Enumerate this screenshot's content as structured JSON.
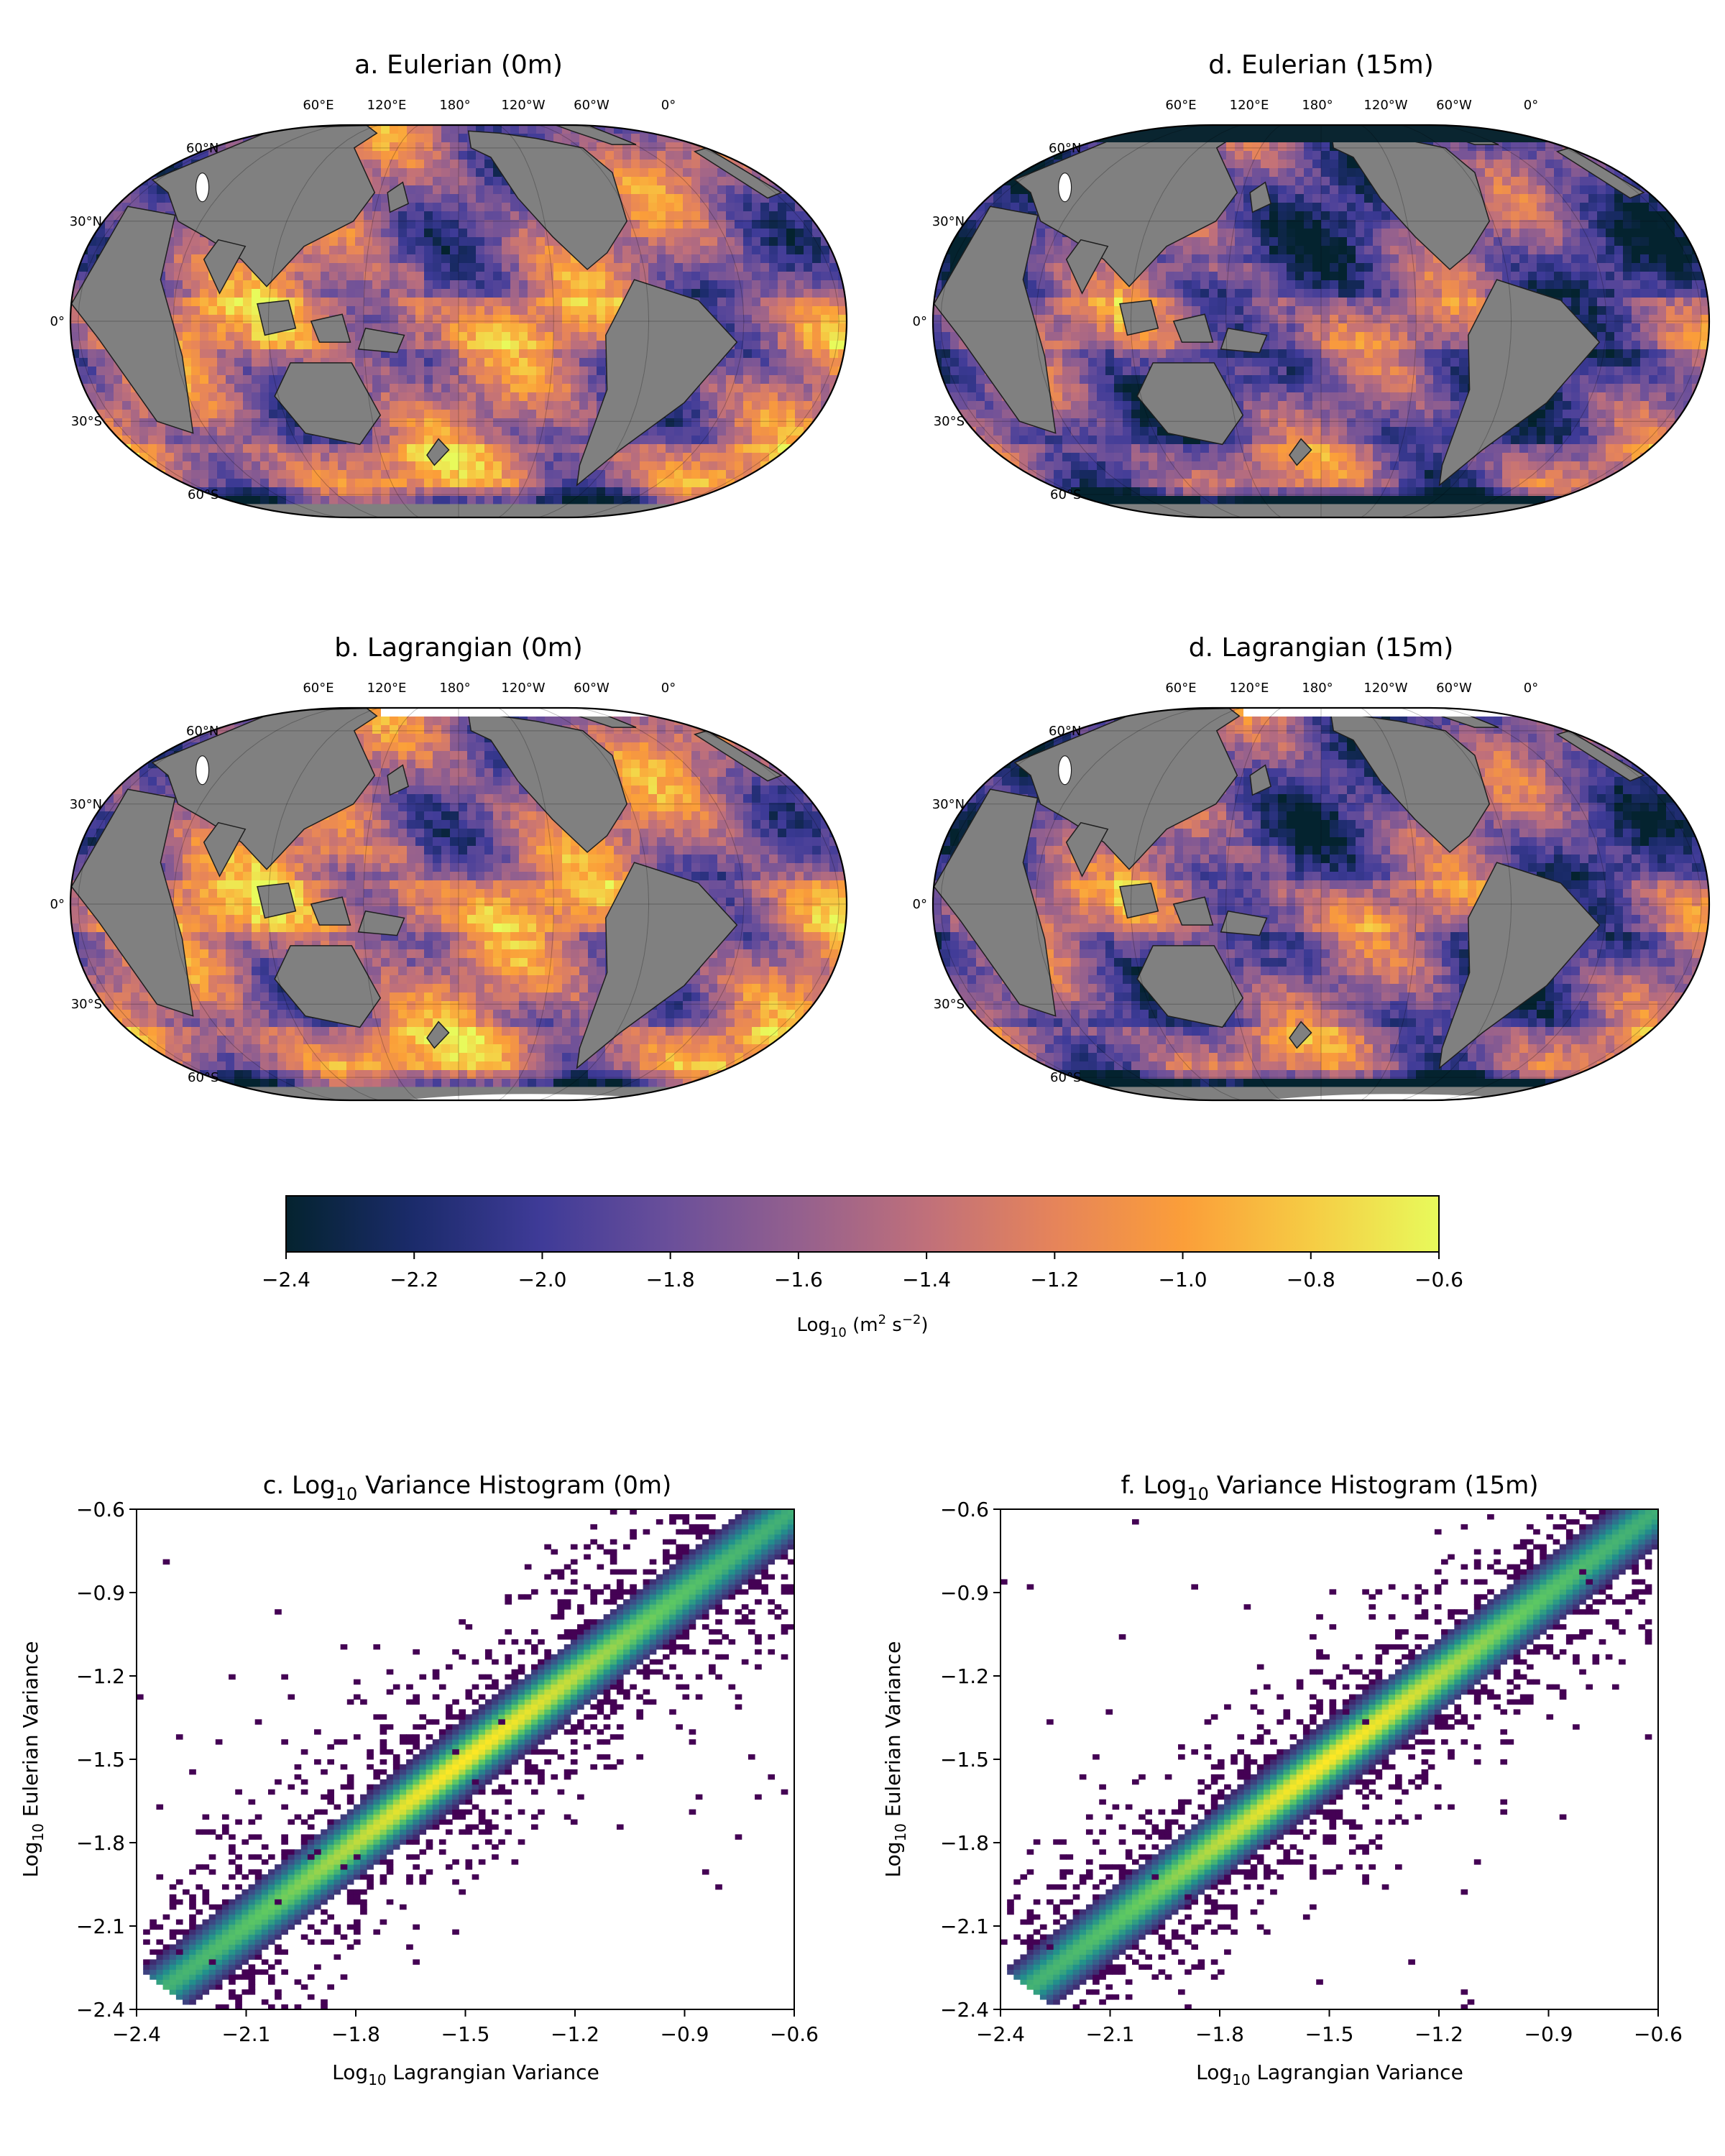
{
  "colors": {
    "land": "#808080",
    "ice": "#ffffff",
    "thermal": [
      "#04232f",
      "#1b2b6b",
      "#3f3b98",
      "#6a4f9a",
      "#94608e",
      "#c0707a",
      "#e6845a",
      "#fb9e39",
      "#f6cc44",
      "#e8fa5b"
    ],
    "viridis": [
      "#440154",
      "#3b528b",
      "#21918c",
      "#5ec962",
      "#fde725"
    ]
  },
  "map_lon_labels": [
    "60°E",
    "120°E",
    "180°",
    "120°W",
    "60°W",
    "0°"
  ],
  "map_lat_labels": [
    "60°N",
    "30°N",
    "0°",
    "30°S",
    "60°S"
  ],
  "maps": [
    {
      "title": "a. Eulerian (0m)",
      "depth": "0m",
      "kind": "eulerian"
    },
    {
      "title": "d. Eulerian (15m)",
      "depth": "15m",
      "kind": "eulerian"
    },
    {
      "title": "b. Lagrangian (0m)",
      "depth": "0m",
      "kind": "lagrangian"
    },
    {
      "title": "d. Lagrangian (15m)",
      "depth": "15m",
      "kind": "lagrangian"
    }
  ],
  "colorbar": {
    "ticks": [
      "−2.4",
      "−2.2",
      "−2.0",
      "−1.8",
      "−1.6",
      "−1.4",
      "−1.2",
      "−1.0",
      "−0.8",
      "−0.6"
    ],
    "label_main": "Log",
    "label_sub": "10",
    "label_rest": " (m",
    "label_sup1": "2",
    "label_mid": " s",
    "label_sup2": "−2",
    "label_end": ")"
  },
  "hist_ticks": [
    "−2.4",
    "−2.1",
    "−1.8",
    "−1.5",
    "−1.2",
    "−0.9",
    "−0.6"
  ],
  "chart_data": [
    {
      "type": "heatmap",
      "title_prefix": "c. Log",
      "title_sub": "10",
      "title_rest": " Variance Histogram (0m)",
      "xlabel_prefix": "Log",
      "xlabel_sub": "10",
      "xlabel_rest": " Lagrangian Variance",
      "ylabel_prefix": "Log",
      "ylabel_sub": "10",
      "ylabel_rest": " Eulerian Variance",
      "xlim": [
        -2.4,
        -0.6
      ],
      "ylim": [
        -2.4,
        -0.6
      ],
      "x_ticks": [
        -2.4,
        -2.1,
        -1.8,
        -1.5,
        -1.2,
        -0.9,
        -0.6
      ],
      "y_ticks": [
        -2.4,
        -2.1,
        -1.8,
        -1.5,
        -1.2,
        -0.9,
        -0.6
      ],
      "ridge": {
        "from": [
          -2.2,
          -2.2
        ],
        "to": [
          -0.6,
          -0.6
        ]
      },
      "colormap": "viridis"
    },
    {
      "type": "heatmap",
      "title_prefix": "f. Log",
      "title_sub": "10",
      "title_rest": " Variance Histogram (15m)",
      "xlabel_prefix": "Log",
      "xlabel_sub": "10",
      "xlabel_rest": " Lagrangian Variance",
      "ylabel_prefix": "Log",
      "ylabel_sub": "10",
      "ylabel_rest": " Eulerian Variance",
      "xlim": [
        -2.4,
        -0.6
      ],
      "ylim": [
        -2.4,
        -0.6
      ],
      "x_ticks": [
        -2.4,
        -2.1,
        -1.8,
        -1.5,
        -1.2,
        -0.9,
        -0.6
      ],
      "y_ticks": [
        -2.4,
        -2.1,
        -1.8,
        -1.5,
        -1.2,
        -0.9,
        -0.6
      ],
      "ridge": {
        "from": [
          -2.2,
          -2.2
        ],
        "to": [
          -0.6,
          -0.6
        ]
      },
      "colormap": "viridis"
    }
  ]
}
